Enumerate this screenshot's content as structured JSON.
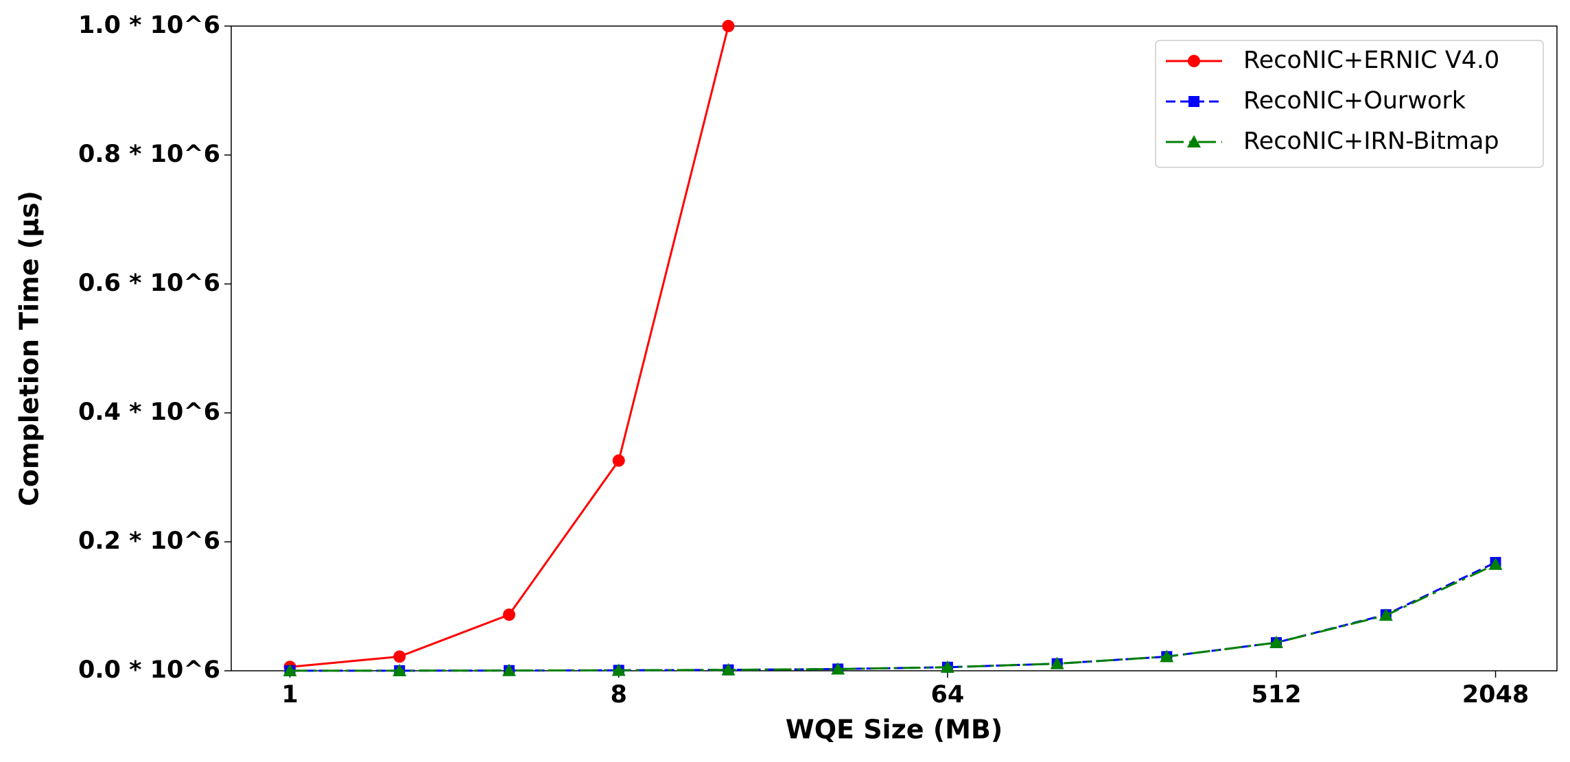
{
  "chart_data": {
    "type": "line",
    "x_label": "WQE Size (MB)",
    "y_label": "Completion Time (µs)",
    "x": [
      1,
      2,
      4,
      8,
      16,
      32,
      64,
      128,
      256,
      512,
      1024,
      2048
    ],
    "series": [
      {
        "name": "RecoNIC+ERNIC V4.0",
        "color": "#ff0000",
        "marker": "circle",
        "linestyle": "solid",
        "values": [
          6000,
          22000,
          87000,
          326000,
          1000000,
          null,
          null,
          null,
          null,
          null,
          null,
          null
        ]
      },
      {
        "name": "RecoNIC+Ourwork",
        "color": "#0000ff",
        "marker": "square",
        "linestyle": "dashed",
        "values": [
          90,
          170,
          350,
          700,
          1400,
          2700,
          5500,
          11000,
          22000,
          43700,
          87000,
          168000
        ]
      },
      {
        "name": "RecoNIC+IRN-Bitmap",
        "color": "#008000",
        "marker": "triangle",
        "linestyle": "dashdot",
        "values": [
          90,
          170,
          350,
          700,
          1400,
          2700,
          5500,
          11000,
          22000,
          43700,
          86000,
          165000
        ]
      }
    ],
    "xscale": "log2",
    "xlim": [
      0.69,
      3020
    ],
    "xticks": [
      1,
      8,
      64,
      512,
      2048
    ],
    "ylim": [
      0,
      1000000
    ],
    "yticks": [
      {
        "value": 0,
        "label": "0.0 * 10^6"
      },
      {
        "value": 200000,
        "label": "0.2 * 10^6"
      },
      {
        "value": 400000,
        "label": "0.4 * 10^6"
      },
      {
        "value": 600000,
        "label": "0.6 * 10^6"
      },
      {
        "value": 800000,
        "label": "0.8 * 10^6"
      },
      {
        "value": 1000000,
        "label": "1.0 * 10^6"
      }
    ],
    "grid": false,
    "legend": "upper right"
  }
}
